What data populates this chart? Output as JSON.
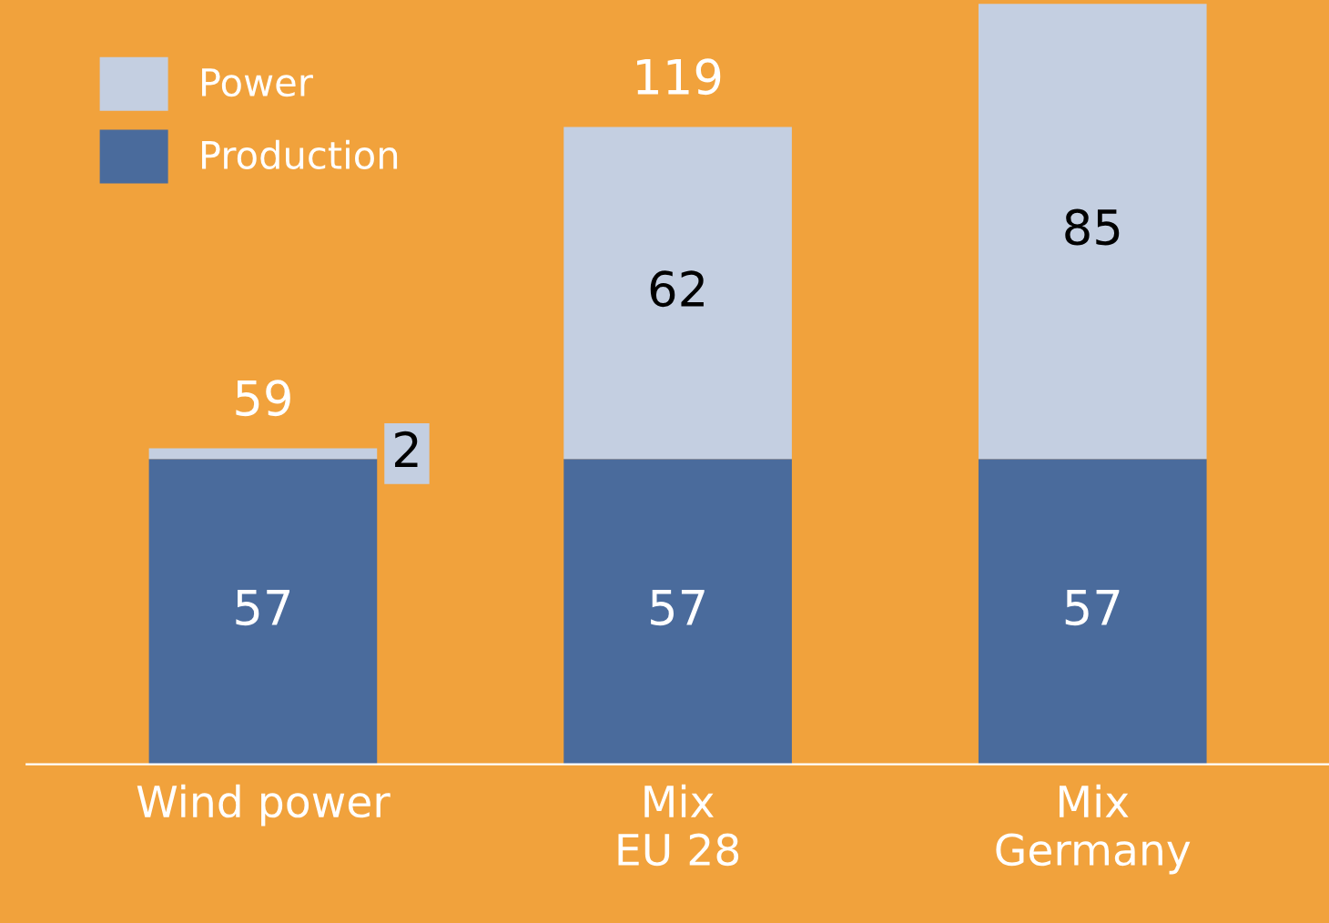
{
  "chart_data": {
    "type": "bar",
    "stacked": true,
    "data_labels": true,
    "legend": "top left",
    "grid": false,
    "categories": [
      "Wind power",
      "Mix\nEU 28",
      "Mix\nGermany"
    ],
    "series": [
      {
        "name": "Production",
        "color": "#4a6b9c",
        "values": [
          57,
          57,
          57
        ]
      },
      {
        "name": "Power",
        "color": "#c4cfe1",
        "values": [
          2,
          62,
          85
        ]
      }
    ],
    "totals": [
      "59",
      "119",
      null
    ]
  }
}
